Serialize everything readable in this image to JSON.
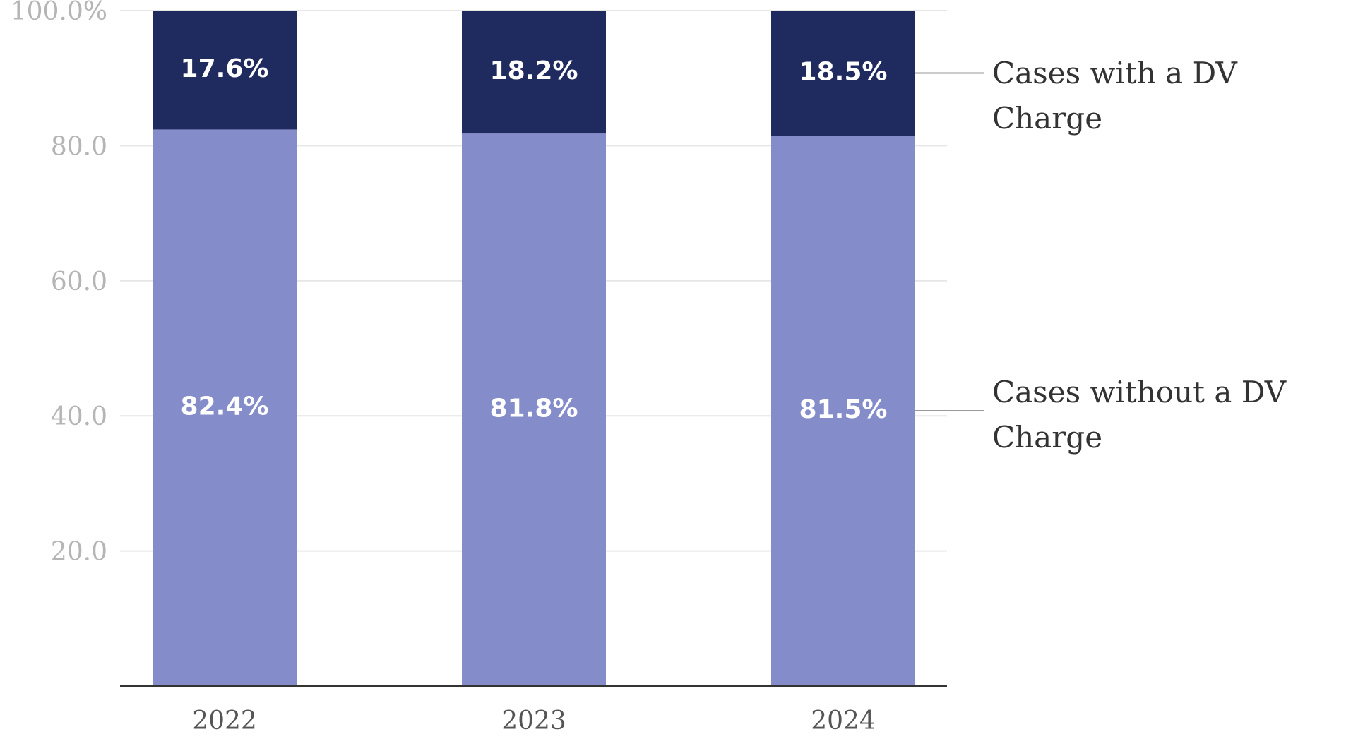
{
  "chart_data": {
    "type": "stacked_bar",
    "categories": [
      "2022",
      "2023",
      "2024"
    ],
    "series": [
      {
        "name": "Cases without a DV Charge",
        "color": "#848cc9",
        "values": [
          82.4,
          81.8,
          81.5
        ],
        "value_labels": [
          "82.4%",
          "81.8%",
          "81.5%"
        ]
      },
      {
        "name": "Cases with a DV Charge",
        "color": "#1f2a5e",
        "values": [
          17.6,
          18.2,
          18.5
        ],
        "value_labels": [
          "17.6%",
          "18.2%",
          "18.5%"
        ]
      }
    ],
    "ylim": [
      0,
      100
    ],
    "yticks": [
      {
        "value": 20,
        "label": "20.0"
      },
      {
        "value": 40,
        "label": "40.0"
      },
      {
        "value": 60,
        "label": "60.0"
      },
      {
        "value": 80,
        "label": "80.0"
      },
      {
        "value": 100,
        "label": "100.0%"
      }
    ],
    "grid": true
  }
}
